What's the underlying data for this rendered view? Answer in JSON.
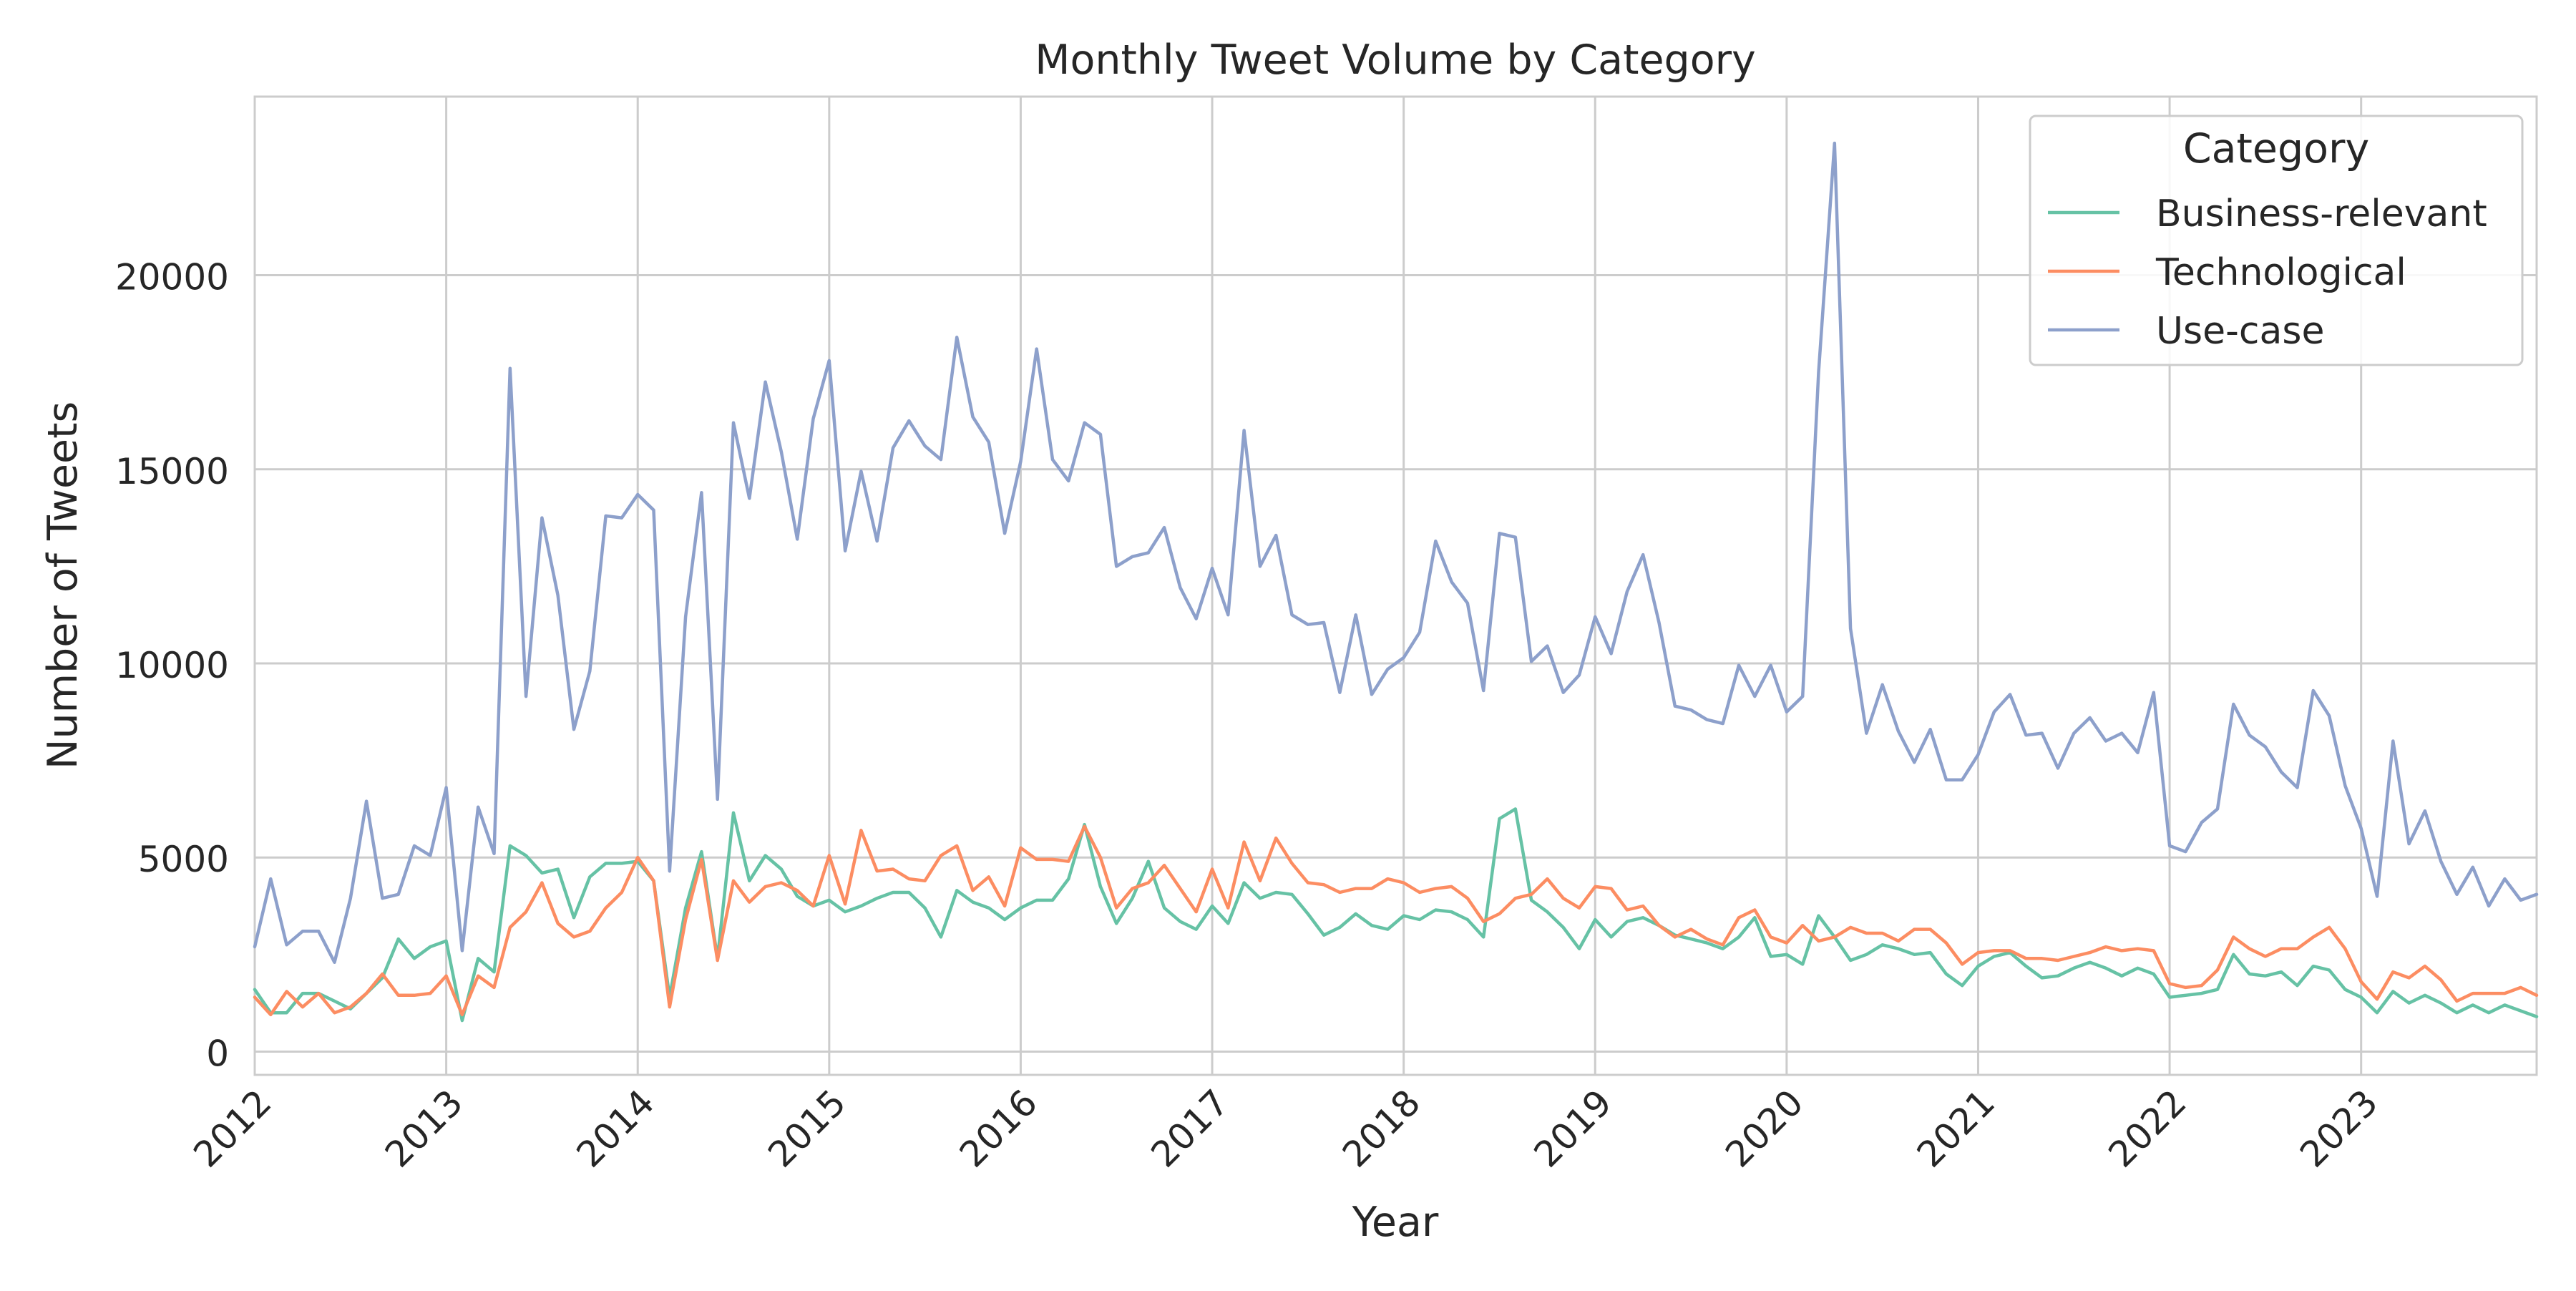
{
  "chart_data": {
    "type": "line",
    "title": "Monthly Tweet Volume by Category",
    "xlabel": "Year",
    "ylabel": "Number of Tweets",
    "x_start": "2012-01",
    "x_ticks": [
      "2012",
      "2013",
      "2014",
      "2015",
      "2016",
      "2017",
      "2018",
      "2019",
      "2020",
      "2021",
      "2022",
      "2023"
    ],
    "y_ticks": [
      0,
      5000,
      10000,
      15000,
      20000
    ],
    "xlim": [
      "2012-01",
      "2023-12"
    ],
    "ylim": [
      -600,
      24600
    ],
    "grid": true,
    "legend": {
      "title": "Category",
      "position": "top-right"
    },
    "series": [
      {
        "name": "Business-relevant",
        "color": "#66c2a5",
        "values": [
          1600,
          1000,
          1000,
          1500,
          1500,
          1300,
          1100,
          1500,
          1900,
          2900,
          2400,
          2700,
          2850,
          800,
          2400,
          2050,
          5300,
          5050,
          4600,
          4700,
          3450,
          4500,
          4850,
          4850,
          4900,
          4400,
          1400,
          3700,
          5150,
          2400,
          6150,
          4400,
          5050,
          4700,
          4000,
          3750,
          3900,
          3600,
          3750,
          3950,
          4100,
          4100,
          3700,
          2950,
          4150,
          3850,
          3700,
          3400,
          3700,
          3900,
          3900,
          4450,
          5850,
          4250,
          3300,
          3950,
          4900,
          3700,
          3350,
          3150,
          3750,
          3300,
          4350,
          3950,
          4100,
          4050,
          3550,
          3000,
          3200,
          3550,
          3250,
          3150,
          3500,
          3400,
          3650,
          3600,
          3400,
          2950,
          6000,
          6250,
          3900,
          3600,
          3200,
          2650,
          3400,
          2950,
          3350,
          3450,
          3250,
          3000,
          2900,
          2800,
          2650,
          2950,
          3450,
          2450,
          2500,
          2250,
          3500,
          2950,
          2350,
          2500,
          2750,
          2650,
          2500,
          2550,
          2000,
          1700,
          2200,
          2450,
          2550,
          2200,
          1900,
          1950,
          2150,
          2300,
          2150,
          1950,
          2150,
          2000,
          1400,
          1450,
          1500,
          1600,
          2500,
          2000,
          1950,
          2050,
          1700,
          2200,
          2100,
          1600,
          1400,
          1000,
          1550,
          1250,
          1450,
          1250,
          1000,
          1200,
          1000,
          1200,
          1050,
          900
        ]
      },
      {
        "name": "Technological",
        "color": "#fc8d62",
        "values": [
          1400,
          950,
          1550,
          1150,
          1500,
          1000,
          1150,
          1500,
          2000,
          1450,
          1450,
          1500,
          1950,
          950,
          1950,
          1650,
          3200,
          3600,
          4350,
          3300,
          2950,
          3100,
          3700,
          4100,
          5000,
          4400,
          1150,
          3400,
          4950,
          2350,
          4400,
          3850,
          4250,
          4350,
          4150,
          3750,
          5050,
          3800,
          5700,
          4650,
          4700,
          4450,
          4400,
          5050,
          5300,
          4150,
          4500,
          3750,
          5250,
          4950,
          4950,
          4900,
          5800,
          5000,
          3700,
          4200,
          4350,
          4800,
          4200,
          3600,
          4700,
          3700,
          5400,
          4400,
          5500,
          4850,
          4350,
          4300,
          4100,
          4200,
          4200,
          4450,
          4350,
          4100,
          4200,
          4250,
          3950,
          3350,
          3550,
          3950,
          4050,
          4450,
          3950,
          3700,
          4250,
          4200,
          3650,
          3750,
          3250,
          2950,
          3150,
          2900,
          2750,
          3450,
          3650,
          2950,
          2800,
          3250,
          2850,
          2950,
          3200,
          3050,
          3050,
          2850,
          3150,
          3150,
          2800,
          2250,
          2550,
          2600,
          2600,
          2400,
          2400,
          2350,
          2450,
          2550,
          2700,
          2600,
          2650,
          2600,
          1750,
          1650,
          1700,
          2100,
          2950,
          2650,
          2450,
          2650,
          2650,
          2950,
          3200,
          2650,
          1800,
          1350,
          2050,
          1900,
          2200,
          1850,
          1300,
          1500,
          1500,
          1500,
          1650,
          1450
        ]
      },
      {
        "name": "Use-case",
        "color": "#8da0cb",
        "values": [
          2700,
          4450,
          2750,
          3100,
          3100,
          2300,
          3950,
          6450,
          3950,
          4050,
          5300,
          5050,
          6800,
          2600,
          6300,
          5100,
          17600,
          9150,
          13750,
          11750,
          8300,
          9800,
          13800,
          13750,
          14350,
          13950,
          4650,
          11200,
          14400,
          6500,
          16200,
          14250,
          17250,
          15450,
          13200,
          16300,
          17800,
          12900,
          14950,
          13150,
          15550,
          16250,
          15600,
          15250,
          18400,
          16350,
          15700,
          13350,
          15200,
          18100,
          15250,
          14700,
          16200,
          15900,
          12500,
          12750,
          12850,
          13500,
          11950,
          11150,
          12450,
          11250,
          16000,
          12500,
          13300,
          11250,
          11000,
          11050,
          9250,
          11250,
          9200,
          9850,
          10150,
          10800,
          13150,
          12100,
          11550,
          9300,
          13350,
          13250,
          10050,
          10450,
          9250,
          9700,
          11200,
          10250,
          11850,
          12800,
          11050,
          8900,
          8800,
          8550,
          8450,
          9950,
          9150,
          9950,
          8750,
          9150,
          17500,
          23400,
          10900,
          8200,
          9450,
          8250,
          7450,
          8300,
          7000,
          7000,
          7650,
          8750,
          9200,
          8150,
          8200,
          7300,
          8200,
          8600,
          8000,
          8200,
          7700,
          9250,
          5300,
          5150,
          5900,
          6250,
          8950,
          8150,
          7850,
          7200,
          6800,
          9300,
          8650,
          6850,
          5750,
          4000,
          8000,
          5350,
          6200,
          4900,
          4050,
          4750,
          3750,
          4450,
          3900,
          4050
        ]
      }
    ]
  }
}
